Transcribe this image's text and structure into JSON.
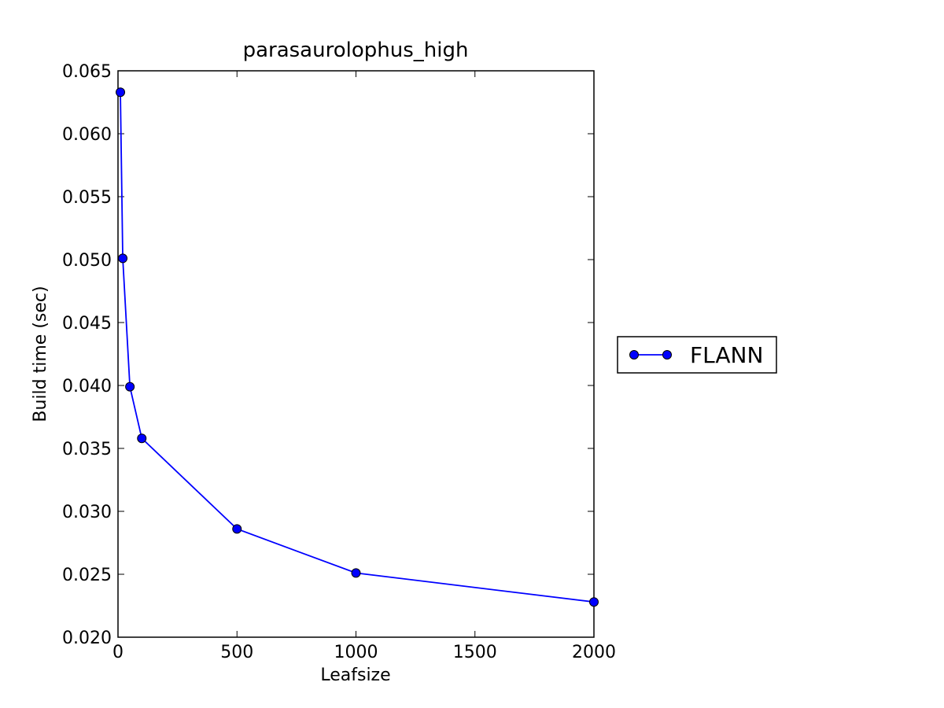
{
  "chart_data": {
    "type": "line",
    "title": "parasaurolophus_high",
    "xlabel": "Leafsize",
    "ylabel": "Build time (sec)",
    "xlim": [
      0,
      2000
    ],
    "ylim": [
      0.02,
      0.065
    ],
    "xticks": [
      "0",
      "500",
      "1000",
      "1500",
      "2000"
    ],
    "yticks": [
      "0.020",
      "0.025",
      "0.030",
      "0.035",
      "0.040",
      "0.045",
      "0.050",
      "0.055",
      "0.060",
      "0.065"
    ],
    "grid": false,
    "legend_position": "outside-right",
    "series": [
      {
        "name": "FLANN",
        "color": "#0000ff",
        "marker": "circle",
        "x": [
          10,
          20,
          50,
          100,
          500,
          1000,
          2000
        ],
        "y": [
          0.0633,
          0.0501,
          0.0399,
          0.0358,
          0.0286,
          0.0251,
          0.0228
        ]
      }
    ]
  }
}
